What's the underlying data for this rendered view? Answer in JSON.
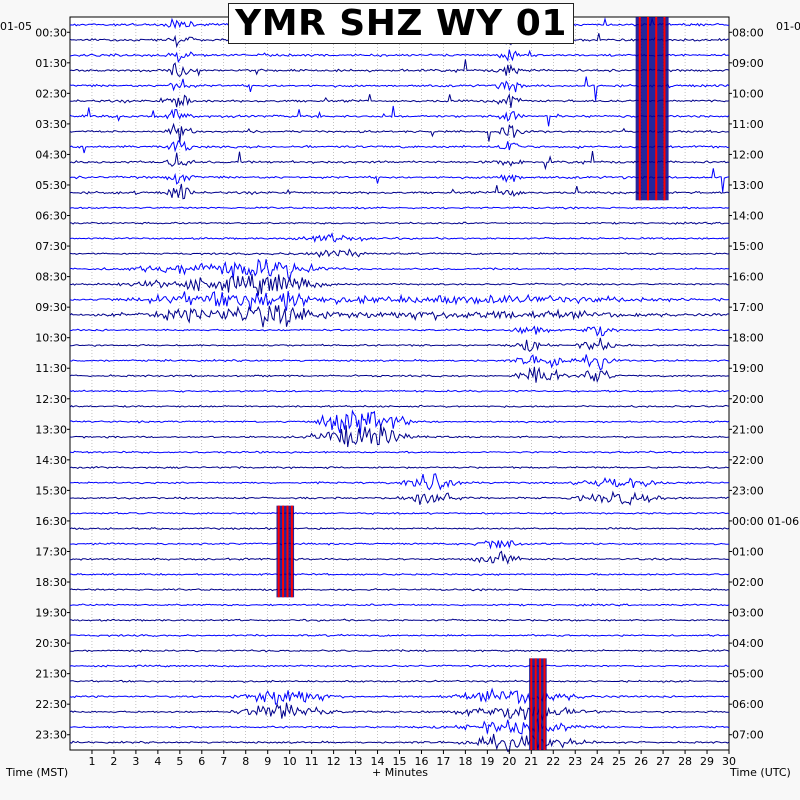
{
  "chart_data": {
    "type": "line",
    "title": "YMR SHZ WY 01",
    "left_axis_label": "Time (MST)",
    "right_axis_label": "Time (UTC)",
    "x_axis_label": "+ Minutes",
    "left_date": "01-05",
    "right_date_start": "01-0",
    "right_date_change": "01-06",
    "x_range": [
      0,
      30
    ],
    "x_ticks": [
      "1",
      "2",
      "3",
      "4",
      "5",
      "6",
      "7",
      "8",
      "9",
      "10",
      "11",
      "12",
      "13",
      "14",
      "15",
      "16",
      "17",
      "18",
      "19",
      "20",
      "21",
      "22",
      "23",
      "24",
      "25",
      "26",
      "27",
      "28",
      "29",
      "30"
    ],
    "rows": 48,
    "row_minutes": 30,
    "left_row_labels": [
      "00:30",
      "01:30",
      "02:30",
      "03:30",
      "04:30",
      "05:30",
      "06:30",
      "07:30",
      "08:30",
      "09:30",
      "10:30",
      "11:30",
      "12:30",
      "13:30",
      "14:30",
      "15:30",
      "16:30",
      "17:30",
      "18:30",
      "19:30",
      "20:30",
      "21:30",
      "22:30",
      "23:30"
    ],
    "right_row_labels": [
      "08:00",
      "09:00",
      "10:00",
      "11:00",
      "12:00",
      "13:00",
      "14:00",
      "15:00",
      "16:00",
      "17:00",
      "18:00",
      "19:00",
      "20:00",
      "21:00",
      "22:00",
      "23:00",
      "00:00",
      "01:00",
      "02:00",
      "03:00",
      "04:00",
      "05:00",
      "06:00",
      "07:00"
    ],
    "trace_colors": [
      "#0000ff",
      "#00008b"
    ],
    "clip_color": "#ff0000",
    "grid": true,
    "events": [
      {
        "start_row": 32,
        "end_row": 38,
        "minute": 9.8,
        "width_min": 0.8,
        "amplitude": "clipped"
      },
      {
        "start_row": 42,
        "end_row": 48,
        "minute": 21.3,
        "width_min": 0.8,
        "amplitude": "clipped"
      },
      {
        "start_row": 0,
        "end_row": 12,
        "minute": 26.5,
        "width_min": 1.5,
        "amplitude": "clipped"
      }
    ]
  }
}
